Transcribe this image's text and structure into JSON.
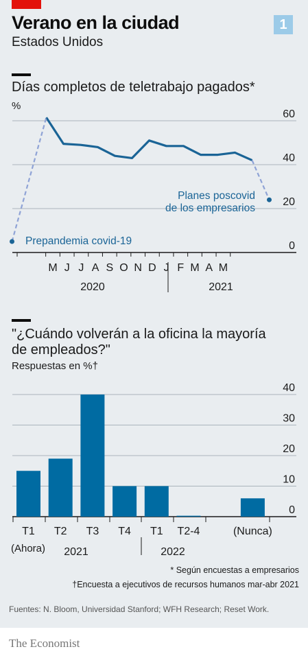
{
  "header": {
    "title": "Verano en la ciudad",
    "subtitle": "Estados Unidos",
    "badge": "1"
  },
  "chart1": {
    "title": "Días completos de teletrabajo pagados*",
    "unit": "%",
    "annotations": {
      "prepandemic": "Prepandemia covid-19",
      "plans_line1": "Planes poscovid",
      "plans_line2": "de los empresarios"
    },
    "years": [
      "2020",
      "2021"
    ]
  },
  "chart2": {
    "title_line1": "\"¿Cuándo volverán a la oficina la mayoría",
    "title_line2": "de empleados?\"",
    "unit": "Respuestas en %†",
    "sublabels": [
      "(Ahora)",
      "(Nunca)"
    ],
    "years": [
      "2021",
      "2022"
    ]
  },
  "notes": {
    "note1": "* Según encuestas a empresarios",
    "note2": "†Encuesta a ejecutivos de recursos humanos mar-abr 2021"
  },
  "source": "Fuentes: N. Bloom, Universidad Stanford; WFH Research; Reset Work.",
  "logo": "The Economist",
  "colors": {
    "series": "#1a6496",
    "bars": "#006ba2",
    "dashed": "#8fa3d6",
    "accent_red": "#e3120b",
    "badge": "#9ccbe8",
    "background": "#e9edf0"
  },
  "chart_data": [
    {
      "type": "line",
      "title": "Días completos de teletrabajo pagados*",
      "ylabel": "%",
      "ylim": [
        0,
        60
      ],
      "yticks": [
        0,
        20,
        40,
        60
      ],
      "x_tick_labels": [
        "M",
        "J",
        "J",
        "A",
        "S",
        "O",
        "N",
        "D",
        "J",
        "F",
        "M",
        "A",
        "M"
      ],
      "x_year_labels": [
        "2020",
        "2021"
      ],
      "grid": true,
      "series": [
        {
          "name": "",
          "style": "solid",
          "x": [
            "2020-05",
            "2020-06",
            "2020-07",
            "2020-08",
            "2020-09",
            "2020-10",
            "2020-11",
            "2020-12",
            "2021-01",
            "2021-02",
            "2021-03",
            "2021-04",
            "2021-05"
          ],
          "values": [
            61.5,
            49.5,
            49,
            48,
            44,
            43,
            51,
            48.5,
            48.5,
            44.5,
            44.5,
            45.5,
            42
          ]
        },
        {
          "name": "Prepandemia covid-19",
          "style": "dashed",
          "x": [
            "2020-03",
            "2020-05"
          ],
          "values": [
            5,
            61.5
          ]
        },
        {
          "name": "Planes poscovid de los empresarios",
          "style": "dashed",
          "x": [
            "2021-05",
            "2021-06"
          ],
          "values": [
            42,
            24
          ]
        }
      ]
    },
    {
      "type": "bar",
      "title": "\"¿Cuándo volverán a la oficina la mayoría de empleados?\"",
      "ylabel": "Respuestas en %†",
      "ylim": [
        0,
        40
      ],
      "yticks": [
        0,
        10,
        20,
        30,
        40
      ],
      "grid": true,
      "categories": [
        "T1",
        "T2",
        "T3",
        "T4",
        "T1",
        "T2-4",
        "(Nunca)"
      ],
      "values": [
        15,
        19,
        40,
        10,
        10,
        0.3,
        6
      ]
    }
  ]
}
